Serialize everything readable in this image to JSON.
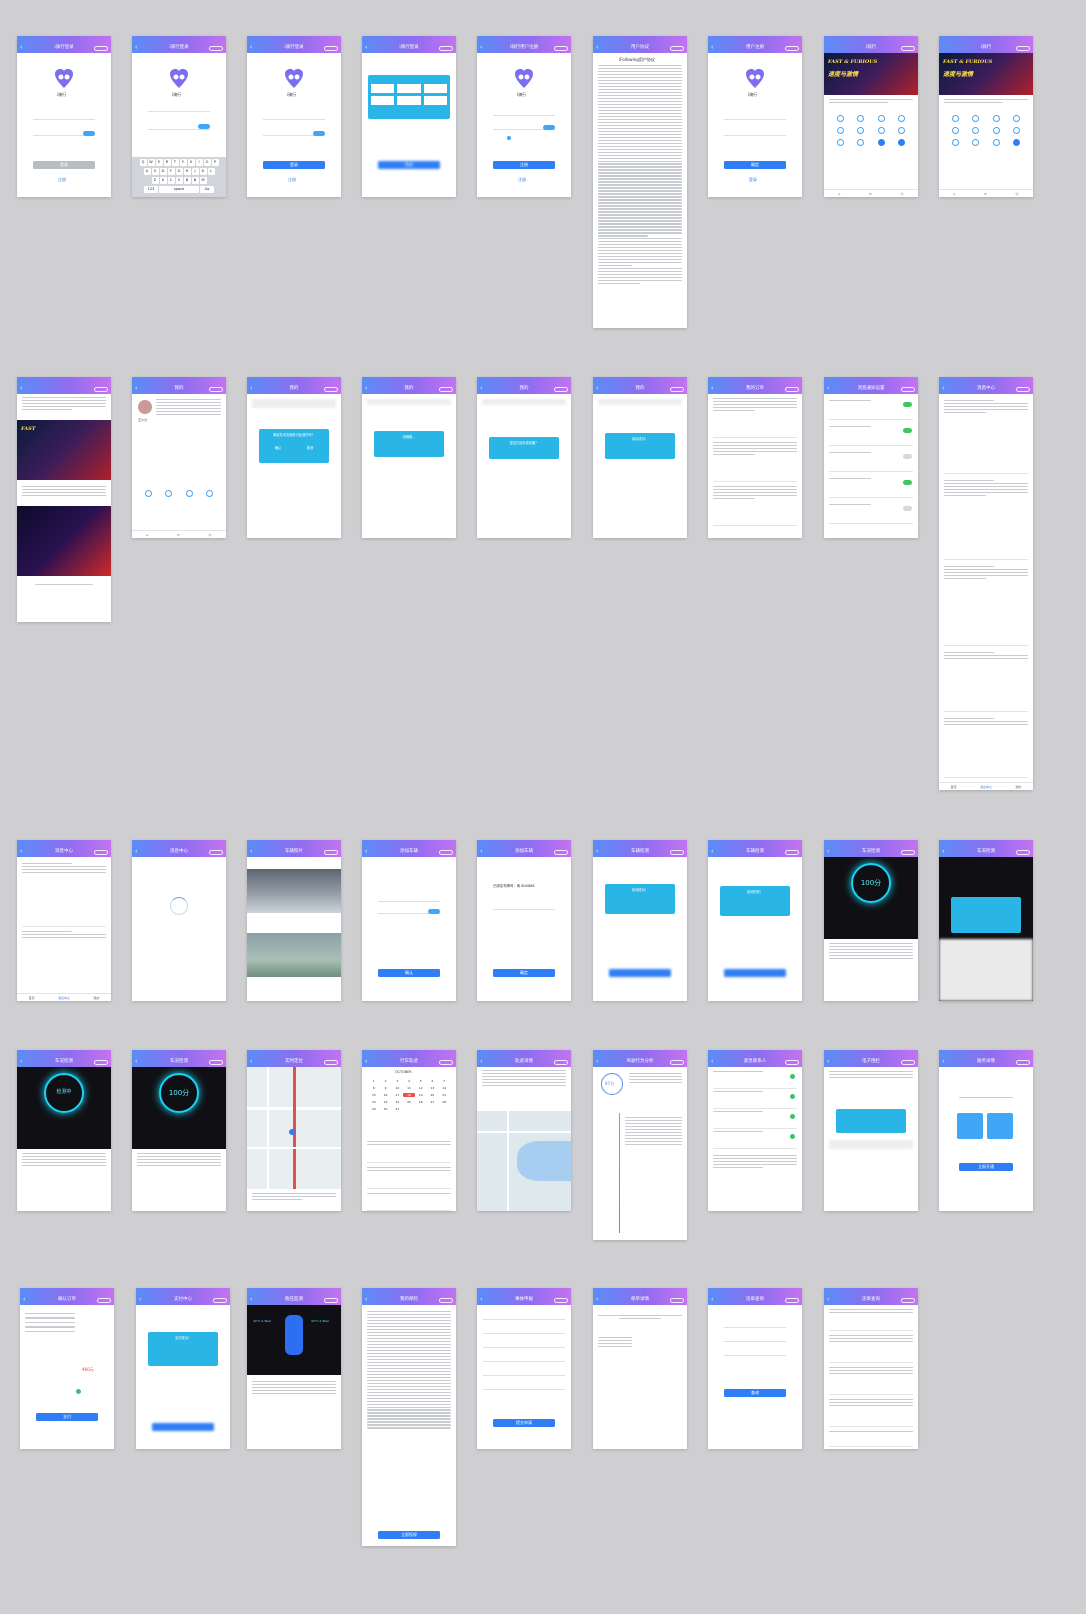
{
  "screens": {
    "login1": {
      "title": "i骑行登录",
      "app_name": "i骑行",
      "login": "登录",
      "register": "注册"
    },
    "login2": {
      "title": "i骑行登录",
      "app_name": "i骑行"
    },
    "login3": {
      "title": "i骑行登录",
      "app_name": "i骑行",
      "login": "登录",
      "register": "注册"
    },
    "login4": {
      "title": "i骑行登录",
      "login": "登录"
    },
    "login5": {
      "title": "i骑行用户注册",
      "app_name": "i骑行",
      "agree": "注册",
      "register": "注册"
    },
    "agreement": {
      "title": "用户协议",
      "heading": "iFollowing用户协议"
    },
    "reset": {
      "title": "用户注册",
      "app_name": "i骑行",
      "confirm": "确定",
      "register": "登录"
    },
    "home1": {
      "title": "i骑行",
      "banner": "FAST & FURIOUS",
      "banner_sub": "速度与激情"
    },
    "home2": {
      "title": "i骑行",
      "banner": "FAST & FURIOUS",
      "banner_sub": "速度与激情"
    },
    "mine": {
      "title": "我的",
      "name": "王小力"
    },
    "mine_modal1": {
      "title": "我的",
      "modal": "确定在本页面执行此操作吗？",
      "ok": "确认",
      "cancel": "取消"
    },
    "mine_modal2": {
      "title": "我的",
      "modal": "请稍候..."
    },
    "mine_modal3": {
      "title": "我的",
      "modal": "是否已经完成设备？"
    },
    "mine_modal4": {
      "title": "我的",
      "modal": "保存成功！"
    },
    "orders": {
      "title": "我的订单"
    },
    "settings": {
      "title": "消息通知设置"
    },
    "messages": {
      "title": "消息中心",
      "tabs": [
        "首页",
        "消息中心",
        "我的"
      ]
    },
    "loading": {
      "title": "消息中心"
    },
    "photos": {
      "title": "车辆照片"
    },
    "bind1": {
      "title": "添加车辆",
      "confirm": "确认"
    },
    "bind2": {
      "title": "添加车辆",
      "plate": "已绑定车牌号：粤 B0X888",
      "confirm": "确定"
    },
    "success1": {
      "title": "车辆检测",
      "modal": "检测成功！"
    },
    "success2": {
      "title": "车辆检测",
      "modal": "检测失败！"
    },
    "score": {
      "title": "车况检测",
      "score": "100分"
    },
    "score_modal": {
      "title": "车况检测"
    },
    "score2": {
      "title": "车况检测",
      "score": "检测中"
    },
    "score3": {
      "title": "车况检测",
      "score": "100分"
    },
    "map": {
      "title": "实时定位"
    },
    "calendar": {
      "title": "行车轨迹",
      "month": "OCTOBER"
    },
    "track": {
      "title": "轨迹详情"
    },
    "report": {
      "title": "驾驶行为分析",
      "score": "87分"
    },
    "contacts": {
      "title": "紧急联系人"
    },
    "fence": {
      "title": "电子围栏"
    },
    "fence2": {
      "title": "服务详情",
      "btn": "立即开通"
    },
    "pay": {
      "title": "确认订单",
      "price": "¥60元",
      "btn": "支付"
    },
    "pay_modal": {
      "title": "支付中心",
      "modal": "支付成功！"
    },
    "tyre": {
      "title": "胎压监测",
      "fl": "32°C 2.3bar",
      "fr": "32°C 2.3bar"
    },
    "insure": {
      "title": "我的保险",
      "btn": "立即投保"
    },
    "claim": {
      "title": "事故申报",
      "btn": "提交申请"
    },
    "quote": {
      "title": "保单详情"
    },
    "form": {
      "title": "违章查询",
      "btn": "查询"
    },
    "history": {
      "title": "违章查询"
    }
  },
  "colors": {
    "brand_blue": "#2f7ef5",
    "modal_cyan": "#29b6e6",
    "gradient_left": "#5b8cf7",
    "gradient_right": "#c373f0"
  }
}
